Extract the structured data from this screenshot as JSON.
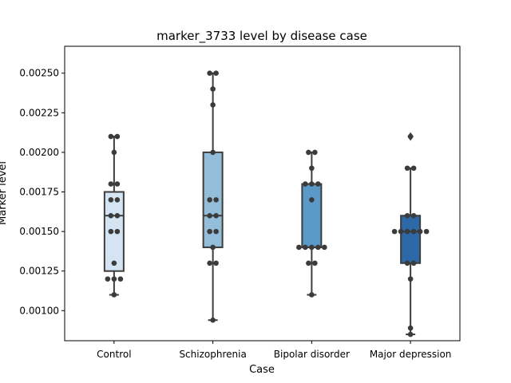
{
  "chart_data": {
    "type": "box",
    "title": "marker_3733 level by disease case",
    "xlabel": "Case",
    "ylabel": "Marker level",
    "ylim": [
      0.00081,
      0.00267
    ],
    "yticks": [
      0.001,
      0.00125,
      0.0015,
      0.00175,
      0.002,
      0.00225,
      0.0025
    ],
    "ytick_labels": [
      "0.00100",
      "0.00125",
      "0.00150",
      "0.00175",
      "0.00200",
      "0.00225",
      "0.00250"
    ],
    "categories": [
      "Control",
      "Schizophrenia",
      "Bipolar disorder",
      "Major depression"
    ],
    "colors": [
      "#d5e4f3",
      "#93bdd9",
      "#5b9ac8",
      "#2d69a8"
    ],
    "boxes": [
      {
        "q1": 0.00125,
        "median": 0.0016,
        "q3": 0.00175,
        "whisker_low": 0.0011,
        "whisker_high": 0.0021,
        "fliers": []
      },
      {
        "q1": 0.0014,
        "median": 0.0016,
        "q3": 0.002,
        "whisker_low": 0.00094,
        "whisker_high": 0.0025,
        "fliers": []
      },
      {
        "q1": 0.0014,
        "median": 0.0014,
        "q3": 0.0018,
        "whisker_low": 0.0011,
        "whisker_high": 0.002,
        "fliers": []
      },
      {
        "q1": 0.0013,
        "median": 0.0015,
        "q3": 0.0016,
        "whisker_low": 0.00085,
        "whisker_high": 0.0019,
        "fliers": [
          0.0021
        ]
      }
    ],
    "points": [
      [
        0.0021,
        0.0021,
        0.002,
        0.0018,
        0.0018,
        0.0017,
        0.0017,
        0.0016,
        0.0016,
        0.0015,
        0.0015,
        0.0013,
        0.0012,
        0.0012,
        0.0012,
        0.0011
      ],
      [
        0.0025,
        0.0025,
        0.0024,
        0.0023,
        0.002,
        0.0017,
        0.0017,
        0.0016,
        0.0016,
        0.0015,
        0.0015,
        0.0014,
        0.0013,
        0.0013,
        0.00094
      ],
      [
        0.002,
        0.002,
        0.0019,
        0.0018,
        0.0018,
        0.0018,
        0.0017,
        0.0014,
        0.0014,
        0.0014,
        0.0014,
        0.0014,
        0.0013,
        0.0013,
        0.0011
      ],
      [
        0.0021,
        0.0019,
        0.0019,
        0.0016,
        0.0016,
        0.0015,
        0.0015,
        0.0015,
        0.0015,
        0.0015,
        0.0015,
        0.0013,
        0.0013,
        0.0012,
        0.00089,
        0.00085
      ]
    ],
    "grid": false,
    "legend": "none"
  }
}
